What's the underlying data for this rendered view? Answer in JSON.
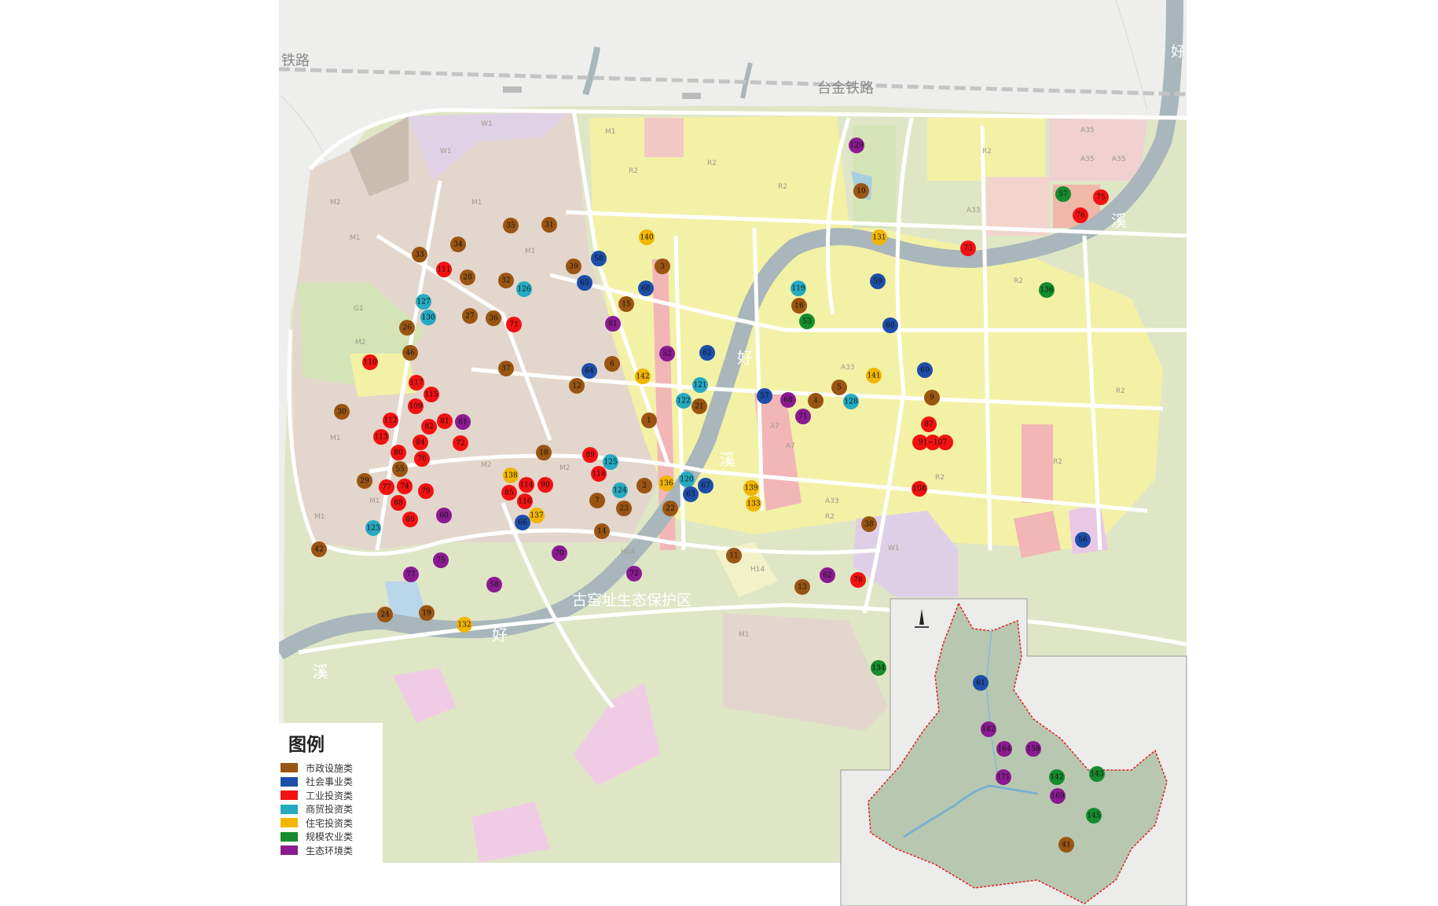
{
  "map": {
    "place_labels": {
      "railway_main": "台金铁路",
      "railway_left": "铁路",
      "reserve": "古窑址生态保护区",
      "river_hao_1": "好",
      "river_xi_1": "溪",
      "river_hao_2": "好",
      "river_xi_2": "溪",
      "river_xi_3": "溪",
      "river_hao_3": "好"
    },
    "zone_labels": [
      "W1",
      "W1",
      "M1",
      "M2",
      "M1",
      "M1",
      "M2",
      "M1",
      "M2",
      "R2",
      "R2",
      "R2",
      "R2",
      "A33",
      "A35",
      "A35",
      "A35",
      "A33",
      "R2",
      "R2",
      "M1",
      "M1",
      "M1",
      "H14",
      "H14",
      "G1",
      "A7",
      "A7",
      "R2",
      "R2",
      "M2",
      "M2",
      "M1",
      "W1",
      "R2",
      "A33"
    ]
  },
  "legend": {
    "title": "图例",
    "items": [
      {
        "label": "市政设施类",
        "color": "#9a5512"
      },
      {
        "label": "社会事业类",
        "color": "#1d4ea8"
      },
      {
        "label": "工业投资类",
        "color": "#f21212"
      },
      {
        "label": "商贸投资类",
        "color": "#26aac2"
      },
      {
        "label": "住宅投资类",
        "color": "#f2b600"
      },
      {
        "label": "规模农业类",
        "color": "#158c2e"
      },
      {
        "label": "生态环境类",
        "color": "#8a1b90"
      }
    ]
  },
  "markers": [
    {
      "label": "35",
      "cat": 0
    },
    {
      "label": "31",
      "cat": 0
    },
    {
      "label": "140",
      "cat": 4
    },
    {
      "label": "34",
      "cat": 0
    },
    {
      "label": "33",
      "cat": 0
    },
    {
      "label": "58",
      "cat": 1
    },
    {
      "label": "111",
      "cat": 2
    },
    {
      "label": "28",
      "cat": 0
    },
    {
      "label": "32",
      "cat": 0
    },
    {
      "label": "39",
      "cat": 0
    },
    {
      "label": "65",
      "cat": 1
    },
    {
      "label": "68",
      "cat": 1
    },
    {
      "label": "126",
      "cat": 3
    },
    {
      "label": "127",
      "cat": 3
    },
    {
      "label": "130",
      "cat": 3
    },
    {
      "label": "15",
      "cat": 0
    },
    {
      "label": "27",
      "cat": 0
    },
    {
      "label": "36",
      "cat": 0
    },
    {
      "label": "71",
      "cat": 2
    },
    {
      "label": "26",
      "cat": 0
    },
    {
      "label": "81",
      "cat": 6
    },
    {
      "label": "46",
      "cat": 0
    },
    {
      "label": "110",
      "cat": 2
    },
    {
      "label": "37",
      "cat": 0
    },
    {
      "label": "6",
      "cat": 0
    },
    {
      "label": "64",
      "cat": 1
    },
    {
      "label": "142",
      "cat": 4
    },
    {
      "label": "12",
      "cat": 0
    },
    {
      "label": "117",
      "cat": 2
    },
    {
      "label": "115",
      "cat": 2
    },
    {
      "label": "109",
      "cat": 2
    },
    {
      "label": "30",
      "cat": 0
    },
    {
      "label": "1",
      "cat": 0
    },
    {
      "label": "112",
      "cat": 2
    },
    {
      "label": "81",
      "cat": 2
    },
    {
      "label": "61",
      "cat": 6
    },
    {
      "label": "82",
      "cat": 2
    },
    {
      "label": "113",
      "cat": 2
    },
    {
      "label": "84",
      "cat": 2
    },
    {
      "label": "72",
      "cat": 2
    },
    {
      "label": "80",
      "cat": 2
    },
    {
      "label": "70",
      "cat": 2
    },
    {
      "label": "18",
      "cat": 0
    },
    {
      "label": "89",
      "cat": 2
    },
    {
      "label": "125",
      "cat": 3
    },
    {
      "label": "55",
      "cat": 0
    },
    {
      "label": "118",
      "cat": 2
    },
    {
      "label": "138",
      "cat": 4
    },
    {
      "label": "29",
      "cat": 0
    },
    {
      "label": "77",
      "cat": 2
    },
    {
      "label": "74",
      "cat": 2
    },
    {
      "label": "79",
      "cat": 2
    },
    {
      "label": "85",
      "cat": 2
    },
    {
      "label": "114",
      "cat": 2
    },
    {
      "label": "90",
      "cat": 2
    },
    {
      "label": "124",
      "cat": 3
    },
    {
      "label": "2",
      "cat": 0
    },
    {
      "label": "88",
      "cat": 2
    },
    {
      "label": "116",
      "cat": 2
    },
    {
      "label": "7",
      "cat": 0
    },
    {
      "label": "23",
      "cat": 0
    },
    {
      "label": "86",
      "cat": 2
    },
    {
      "label": "60",
      "cat": 6
    },
    {
      "label": "137",
      "cat": 4
    },
    {
      "label": "66",
      "cat": 1
    },
    {
      "label": "123",
      "cat": 3
    },
    {
      "label": "14",
      "cat": 0
    },
    {
      "label": "131",
      "cat": 4
    },
    {
      "label": "73",
      "cat": 2
    },
    {
      "label": "3",
      "cat": 0
    },
    {
      "label": "59",
      "cat": 1
    },
    {
      "label": "119",
      "cat": 3
    },
    {
      "label": "16",
      "cat": 0
    },
    {
      "label": "53",
      "cat": 5
    },
    {
      "label": "60",
      "cat": 1
    },
    {
      "label": "52",
      "cat": 6
    },
    {
      "label": "62",
      "cat": 1
    },
    {
      "label": "69",
      "cat": 1
    },
    {
      "label": "141",
      "cat": 4
    },
    {
      "label": "121",
      "cat": 3
    },
    {
      "label": "5",
      "cat": 0
    },
    {
      "label": "57",
      "cat": 1
    },
    {
      "label": "68",
      "cat": 6
    },
    {
      "label": "4",
      "cat": 0
    },
    {
      "label": "128",
      "cat": 3
    },
    {
      "label": "9",
      "cat": 0
    },
    {
      "label": "122",
      "cat": 3
    },
    {
      "label": "21",
      "cat": 0
    },
    {
      "label": "71",
      "cat": 6
    },
    {
      "label": "87",
      "cat": 2
    },
    {
      "label": "91~107",
      "cat": 2
    },
    {
      "label": "108",
      "cat": 2
    },
    {
      "label": "120",
      "cat": 3
    },
    {
      "label": "136",
      "cat": 4
    },
    {
      "label": "67",
      "cat": 1
    },
    {
      "label": "63",
      "cat": 1
    },
    {
      "label": "139",
      "cat": 4
    },
    {
      "label": "133",
      "cat": 4
    },
    {
      "label": "22",
      "cat": 0
    },
    {
      "label": "38",
      "cat": 0
    },
    {
      "label": "42",
      "cat": 0
    },
    {
      "label": "75",
      "cat": 6
    },
    {
      "label": "77",
      "cat": 6
    },
    {
      "label": "58",
      "cat": 6
    },
    {
      "label": "70",
      "cat": 6
    },
    {
      "label": "72",
      "cat": 6
    },
    {
      "label": "11",
      "cat": 0
    },
    {
      "label": "13",
      "cat": 0
    },
    {
      "label": "62",
      "cat": 6
    },
    {
      "label": "78",
      "cat": 2
    },
    {
      "label": "24",
      "cat": 0
    },
    {
      "label": "19",
      "cat": 0
    },
    {
      "label": "132",
      "cat": 4
    },
    {
      "label": "134",
      "cat": 5
    },
    {
      "label": "129",
      "cat": 6
    },
    {
      "label": "10",
      "cat": 0
    },
    {
      "label": "57",
      "cat": 5
    },
    {
      "label": "75",
      "cat": 2
    },
    {
      "label": "76",
      "cat": 2
    },
    {
      "label": "136",
      "cat": 5
    },
    {
      "label": "56",
      "cat": 1
    },
    {
      "label": "61",
      "cat": 1
    },
    {
      "label": "182",
      "cat": 6
    },
    {
      "label": "164",
      "cat": 6
    },
    {
      "label": "158",
      "cat": 6
    },
    {
      "label": "171",
      "cat": 6
    },
    {
      "label": "142",
      "cat": 5
    },
    {
      "label": "143",
      "cat": 5
    },
    {
      "label": "169",
      "cat": 6
    },
    {
      "label": "145",
      "cat": 5
    },
    {
      "label": "41",
      "cat": 0
    }
  ]
}
